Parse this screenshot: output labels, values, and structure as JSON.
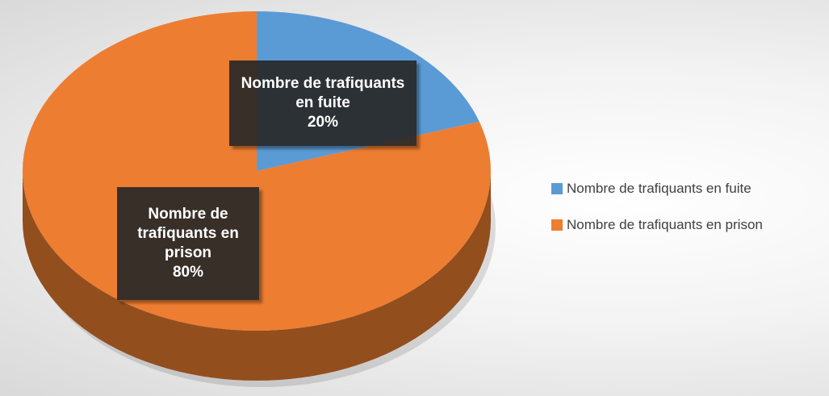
{
  "chart_data": {
    "type": "pie",
    "categories": [
      "Nombre de trafiquants en fuite",
      "Nombre de trafiquants en prison"
    ],
    "values": [
      20,
      80
    ],
    "value_labels": [
      "20%",
      "80%"
    ],
    "colors": [
      "#5b9bd5",
      "#ed7d31"
    ],
    "legend": "right",
    "three_d": true
  }
}
